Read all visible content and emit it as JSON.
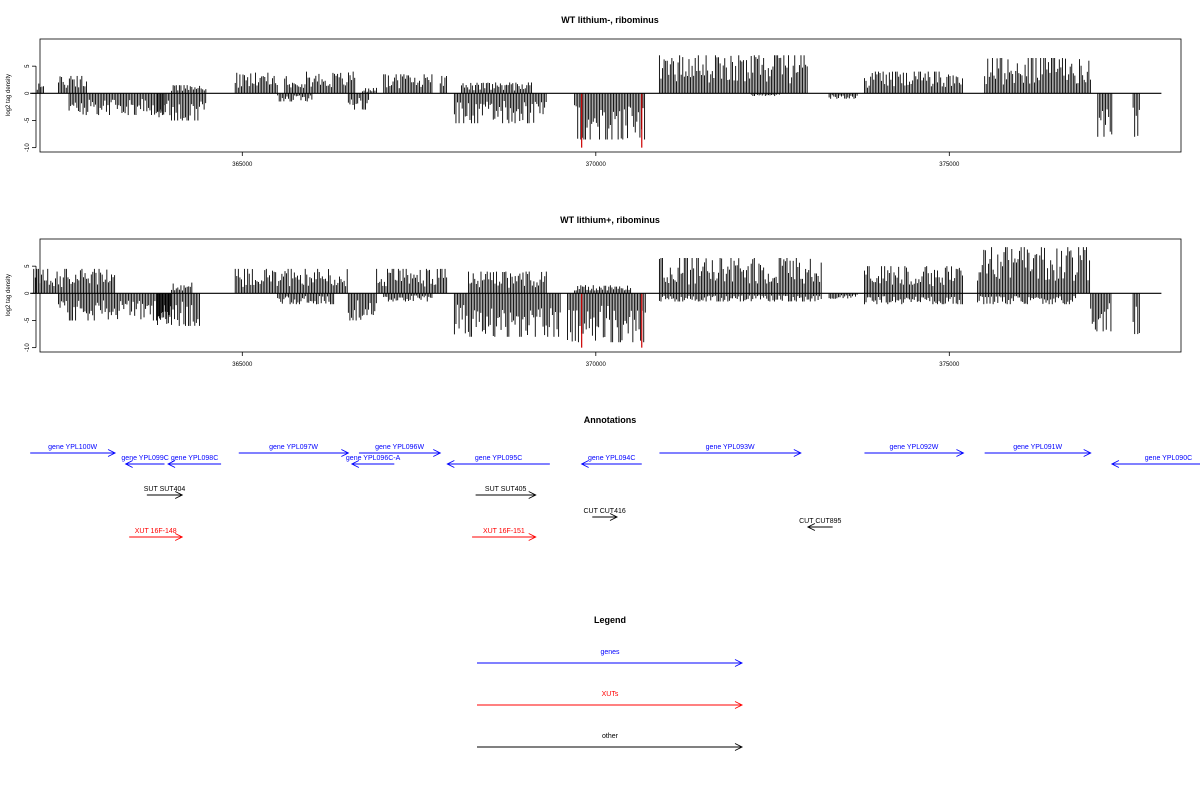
{
  "chart_data": [
    {
      "type": "bar",
      "title": "WT lithium-, ribominus",
      "ylabel": "log2 tag density",
      "ylim": [
        -10,
        10
      ],
      "yticks": [
        "-10",
        "-5",
        "0",
        "5"
      ],
      "xticks": [
        365000,
        370000,
        375000
      ],
      "xlim": [
        362000,
        378000
      ],
      "colors": {
        "default": "#000000",
        "highlight": "#cc0000"
      },
      "highlight_x": [
        369800,
        370650
      ],
      "segments": [
        {
          "from": 362100,
          "to": 362200,
          "min": 0,
          "max": 1.8
        },
        {
          "from": 362400,
          "to": 362800,
          "min": 0,
          "max": 3.2
        },
        {
          "from": 362550,
          "to": 363900,
          "min": -4,
          "max": 0
        },
        {
          "from": 363800,
          "to": 364500,
          "min": -5,
          "max": 0
        },
        {
          "from": 364000,
          "to": 364500,
          "min": 0,
          "max": 1.5
        },
        {
          "from": 364900,
          "to": 365500,
          "min": 0,
          "max": 3.8
        },
        {
          "from": 365500,
          "to": 366000,
          "min": -1.5,
          "max": 0
        },
        {
          "from": 365600,
          "to": 366600,
          "min": 0,
          "max": 4
        },
        {
          "from": 366500,
          "to": 366800,
          "min": -3,
          "max": 0
        },
        {
          "from": 366700,
          "to": 366900,
          "min": 0,
          "max": 1
        },
        {
          "from": 367000,
          "to": 367700,
          "min": 0,
          "max": 3.5
        },
        {
          "from": 367800,
          "to": 367900,
          "min": 0,
          "max": 3.2
        },
        {
          "from": 368000,
          "to": 369300,
          "min": -5.5,
          "max": 0
        },
        {
          "from": 368100,
          "to": 369100,
          "min": 0,
          "max": 2
        },
        {
          "from": 369700,
          "to": 370700,
          "min": -8.5,
          "max": 0
        },
        {
          "from": 370900,
          "to": 373000,
          "min": 0,
          "max": 7
        },
        {
          "from": 372200,
          "to": 372600,
          "min": -0.5,
          "max": 0
        },
        {
          "from": 373300,
          "to": 373700,
          "min": -1,
          "max": 0
        },
        {
          "from": 373800,
          "to": 375200,
          "min": 0,
          "max": 4
        },
        {
          "from": 375500,
          "to": 377000,
          "min": 0,
          "max": 6.5
        },
        {
          "from": 377100,
          "to": 377300,
          "min": -8,
          "max": 0
        },
        {
          "from": 377600,
          "to": 377700,
          "min": -8,
          "max": 0
        }
      ]
    },
    {
      "type": "bar",
      "title": "WT lithium+, ribominus",
      "ylabel": "log2 tag density",
      "ylim": [
        -10,
        10
      ],
      "yticks": [
        "-10",
        "-5",
        "0",
        "5"
      ],
      "xticks": [
        365000,
        370000,
        375000
      ],
      "xlim": [
        362000,
        378000
      ],
      "colors": {
        "default": "#000000",
        "highlight": "#cc0000"
      },
      "highlight_x": [
        369800,
        370650
      ],
      "segments": [
        {
          "from": 362050,
          "to": 363200,
          "min": 0,
          "max": 4.5
        },
        {
          "from": 362400,
          "to": 364000,
          "min": -5,
          "max": 0
        },
        {
          "from": 363800,
          "to": 364400,
          "min": -6,
          "max": 0
        },
        {
          "from": 364000,
          "to": 364300,
          "min": 0,
          "max": 2
        },
        {
          "from": 364900,
          "to": 366500,
          "min": 0,
          "max": 4.5
        },
        {
          "from": 365500,
          "to": 366300,
          "min": -2,
          "max": 0
        },
        {
          "from": 366500,
          "to": 366900,
          "min": -5,
          "max": 0
        },
        {
          "from": 366900,
          "to": 367900,
          "min": 0,
          "max": 4.5
        },
        {
          "from": 367000,
          "to": 367700,
          "min": -1.5,
          "max": 0
        },
        {
          "from": 368000,
          "to": 369500,
          "min": -8,
          "max": 0
        },
        {
          "from": 368200,
          "to": 369300,
          "min": 0,
          "max": 4
        },
        {
          "from": 369600,
          "to": 370700,
          "min": -9,
          "max": 0
        },
        {
          "from": 369700,
          "to": 370500,
          "min": 0,
          "max": 1.5
        },
        {
          "from": 370900,
          "to": 373200,
          "min": 0,
          "max": 6.5
        },
        {
          "from": 370900,
          "to": 373200,
          "min": -1.5,
          "max": 0
        },
        {
          "from": 373300,
          "to": 373700,
          "min": -1,
          "max": 0
        },
        {
          "from": 373800,
          "to": 375200,
          "min": 0,
          "max": 5
        },
        {
          "from": 373800,
          "to": 375200,
          "min": -2,
          "max": 0
        },
        {
          "from": 375400,
          "to": 377000,
          "min": 0,
          "max": 8.5
        },
        {
          "from": 375400,
          "to": 376800,
          "min": -2,
          "max": 0
        },
        {
          "from": 377000,
          "to": 377300,
          "min": -7,
          "max": 0
        },
        {
          "from": 377600,
          "to": 377700,
          "min": -7.5,
          "max": 0
        }
      ]
    }
  ],
  "annotations": {
    "title": "Annotations",
    "features": [
      {
        "label": "gene YPL100W",
        "start": 362000,
        "end": 363200,
        "strand": "+",
        "row": 0,
        "color": "#0000ff"
      },
      {
        "label": "gene YPL099C",
        "start": 363350,
        "end": 363900,
        "strand": "-",
        "row": 1,
        "color": "#0000ff"
      },
      {
        "label": "gene YPL098C",
        "start": 363950,
        "end": 364700,
        "strand": "-",
        "row": 1,
        "color": "#0000ff"
      },
      {
        "label": "gene YPL097W",
        "start": 364950,
        "end": 366500,
        "strand": "+",
        "row": 0,
        "color": "#0000ff"
      },
      {
        "label": "gene YPL096C-A",
        "start": 366550,
        "end": 367150,
        "strand": "-",
        "row": 1,
        "color": "#0000ff"
      },
      {
        "label": "gene YPL096W",
        "start": 366650,
        "end": 367800,
        "strand": "+",
        "row": 0,
        "color": "#0000ff"
      },
      {
        "label": "gene YPL095C",
        "start": 367900,
        "end": 369350,
        "strand": "-",
        "row": 1,
        "color": "#0000ff"
      },
      {
        "label": "gene YPL094C",
        "start": 369800,
        "end": 370650,
        "strand": "-",
        "row": 1,
        "color": "#0000ff"
      },
      {
        "label": "gene YPL093W",
        "start": 370900,
        "end": 372900,
        "strand": "+",
        "row": 0,
        "color": "#0000ff"
      },
      {
        "label": "gene YPL092W",
        "start": 373800,
        "end": 375200,
        "strand": "+",
        "row": 0,
        "color": "#0000ff"
      },
      {
        "label": "gene YPL091W",
        "start": 375500,
        "end": 377000,
        "strand": "+",
        "row": 0,
        "color": "#0000ff"
      },
      {
        "label": "gene YPL090C",
        "start": 377300,
        "end": 378900,
        "strand": "-",
        "row": 1,
        "color": "#0000ff"
      },
      {
        "label": "SUT SUT404",
        "start": 363650,
        "end": 364150,
        "strand": "+",
        "row": 2,
        "color": "#000000"
      },
      {
        "label": "SUT SUT405",
        "start": 368300,
        "end": 369150,
        "strand": "+",
        "row": 2,
        "color": "#000000"
      },
      {
        "label": "CUT CUT416",
        "start": 369950,
        "end": 370300,
        "strand": "+",
        "row": 3,
        "color": "#000000"
      },
      {
        "label": "CUT CUT895",
        "start": 373000,
        "end": 373350,
        "strand": "-",
        "row": 4,
        "color": "#000000"
      },
      {
        "label": "XUT 16F-148",
        "start": 363400,
        "end": 364150,
        "strand": "+",
        "row": 5,
        "color": "#ff0000"
      },
      {
        "label": "XUT 16F-151",
        "start": 368250,
        "end": 369150,
        "strand": "+",
        "row": 5,
        "color": "#ff0000"
      }
    ]
  },
  "legend": {
    "title": "Legend",
    "items": [
      {
        "label": "genes",
        "color": "#0000ff"
      },
      {
        "label": "XUTs",
        "color": "#ff0000"
      },
      {
        "label": "other",
        "color": "#000000"
      }
    ]
  }
}
